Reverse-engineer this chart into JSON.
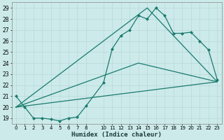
{
  "xlabel": "Humidex (Indice chaleur)",
  "bg_color": "#cceaea",
  "grid_color": "#aadddd",
  "line_color": "#1a7a6e",
  "xlim": [
    -0.5,
    23.5
  ],
  "ylim": [
    18.5,
    29.5
  ],
  "xticks": [
    0,
    1,
    2,
    3,
    4,
    5,
    6,
    7,
    8,
    10,
    11,
    12,
    13,
    14,
    15,
    16,
    17,
    18,
    19,
    20,
    21,
    22,
    23
  ],
  "yticks": [
    19,
    20,
    21,
    22,
    23,
    24,
    25,
    26,
    27,
    28,
    29
  ],
  "line1_x": [
    0,
    1,
    2,
    3,
    4,
    5,
    6,
    7,
    8,
    10,
    11,
    12,
    13,
    14,
    15,
    16,
    17,
    18,
    19,
    20,
    21,
    22,
    23
  ],
  "line1_y": [
    21,
    20,
    19,
    19,
    18.9,
    18.75,
    19.0,
    19.1,
    20.1,
    22.2,
    25.3,
    26.5,
    27.0,
    28.3,
    28.0,
    29.0,
    28.3,
    26.7,
    26.7,
    26.8,
    26.0,
    25.2,
    22.5
  ],
  "line2_x": [
    0,
    23
  ],
  "line2_y": [
    20.0,
    22.3
  ],
  "line3_x": [
    0,
    14,
    23
  ],
  "line3_y": [
    20.0,
    24.0,
    22.3
  ],
  "line4_x": [
    0,
    15,
    23
  ],
  "line4_y": [
    20.0,
    29.0,
    22.3
  ]
}
